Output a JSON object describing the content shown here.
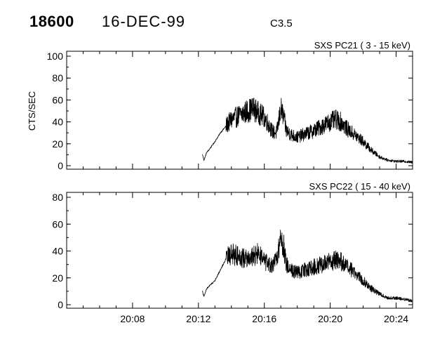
{
  "header": {
    "event_id": "18600",
    "date": "16-DEC-99",
    "flare_class": "C3.5"
  },
  "colors": {
    "trace": "#000000",
    "background": "#ffffff"
  },
  "chart_data": [
    {
      "type": "line",
      "title": "SXS PC21  (  3 - 15 keV)",
      "ylabel": "CTS/SEC",
      "xlabel": "",
      "ylim": [
        0,
        100
      ],
      "yticks": [
        "0",
        "20",
        "40",
        "60",
        "80",
        "100"
      ],
      "xlim": [
        "20:04",
        "20:25"
      ],
      "xticks": [],
      "grid": false,
      "series": [
        {
          "x": [
            "20:12:15",
            "20:12:20",
            "20:12:30",
            "20:12:40",
            "20:13:00",
            "20:13:20",
            "20:13:40",
            "20:14:00",
            "20:14:30",
            "20:15:00",
            "20:15:20",
            "20:15:40",
            "20:16:00",
            "20:16:15",
            "20:16:30",
            "20:16:45",
            "20:17:00",
            "20:17:10",
            "20:17:20",
            "20:17:40",
            "20:18:00",
            "20:18:30",
            "20:19:00",
            "20:19:30",
            "20:20:00",
            "20:20:20",
            "20:20:40",
            "20:21:00",
            "20:21:30",
            "20:22:00",
            "20:22:30",
            "20:23:00",
            "20:23:30",
            "20:24:00",
            "20:24:30",
            "20:25:00"
          ],
          "y": [
            10,
            5,
            12,
            15,
            22,
            30,
            36,
            42,
            46,
            50,
            52,
            48,
            44,
            38,
            31,
            30,
            52,
            45,
            32,
            28,
            26,
            29,
            32,
            36,
            40,
            42,
            40,
            34,
            28,
            22,
            14,
            8,
            5,
            4,
            4,
            3
          ]
        }
      ]
    },
    {
      "type": "line",
      "title": "SXS PC22  ( 15 - 40 keV)",
      "ylabel": "",
      "xlabel": "",
      "ylim": [
        0,
        80
      ],
      "yticks": [
        "0",
        "20",
        "40",
        "60",
        "80"
      ],
      "xlim": [
        "20:04",
        "20:25"
      ],
      "xticks": [
        "20:08",
        "20:12",
        "20:16",
        "20:20",
        "20:24"
      ],
      "grid": false,
      "series": [
        {
          "x": [
            "20:12:15",
            "20:12:20",
            "20:12:30",
            "20:12:40",
            "20:13:00",
            "20:13:20",
            "20:13:40",
            "20:14:00",
            "20:14:30",
            "20:15:00",
            "20:15:20",
            "20:15:40",
            "20:16:00",
            "20:16:15",
            "20:16:30",
            "20:16:45",
            "20:17:00",
            "20:17:10",
            "20:17:20",
            "20:17:40",
            "20:18:00",
            "20:18:30",
            "20:19:00",
            "20:19:30",
            "20:20:00",
            "20:20:20",
            "20:20:40",
            "20:21:00",
            "20:21:30",
            "20:22:00",
            "20:22:30",
            "20:23:00",
            "20:23:30",
            "20:24:00",
            "20:24:30",
            "20:25:00"
          ],
          "y": [
            10,
            6,
            12,
            14,
            18,
            26,
            34,
            38,
            36,
            34,
            36,
            38,
            32,
            30,
            28,
            34,
            50,
            44,
            30,
            26,
            24,
            26,
            28,
            30,
            32,
            33,
            32,
            28,
            24,
            18,
            12,
            8,
            5,
            5,
            4,
            3
          ]
        }
      ]
    }
  ]
}
